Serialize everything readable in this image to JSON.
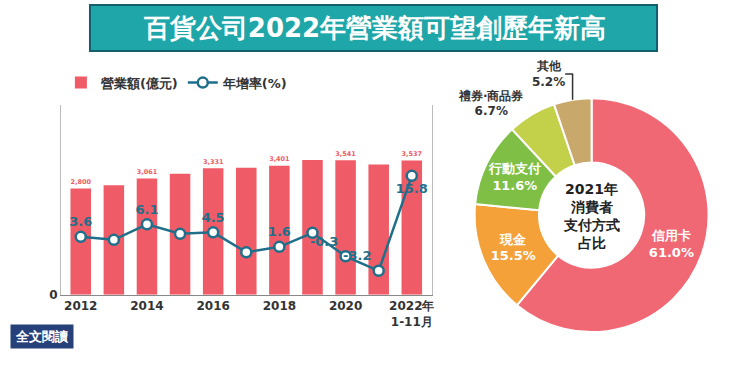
{
  "chart_data": [
    {
      "type": "bar",
      "title": "百貨公司2022年營業額可望創歷年新高",
      "categories": [
        "2012",
        null,
        "2014",
        null,
        "2016",
        null,
        "2018",
        null,
        "2020",
        null,
        "2022年\n1-11月"
      ],
      "series": [
        {
          "name": "營業額(億元)",
          "type": "bar",
          "color": "#ef5b66",
          "values": [
            2800,
            2885,
            3061,
            3190,
            3331,
            3347,
            3401,
            3551,
            3541,
            3428,
            3537
          ],
          "value_labels": [
            "2,800",
            null,
            "3,061",
            null,
            "3,331",
            null,
            "3,401",
            null,
            "3,541",
            null,
            "3,537"
          ]
        },
        {
          "name": "年增率(%)",
          "type": "line",
          "axis": "y2",
          "color": "#1f6f8b",
          "marker": "circle",
          "values": [
            3.6,
            3.0,
            6.1,
            4.2,
            4.5,
            0.5,
            1.6,
            4.4,
            -0.3,
            -3.2,
            15.8
          ],
          "value_labels": [
            "3.6",
            null,
            "6.1",
            null,
            "4.5",
            null,
            "1.6",
            null,
            "-0.3",
            "-3.2",
            "15.8"
          ]
        }
      ],
      "ylim": [
        0,
        5000
      ],
      "yticks": [
        0
      ],
      "y2lim": [
        -8,
        30
      ],
      "y2ticks": [],
      "grid": false,
      "legend": "top-left",
      "data_labels": true,
      "annotations": [
        "全文閱讀"
      ]
    },
    {
      "type": "pie",
      "title": "2021年\n消費者\n支付方式\n占比",
      "categories": [
        "信用卡",
        "現金",
        "行動支付",
        "禮券‧商品券",
        "其他"
      ],
      "values": [
        61.0,
        15.5,
        11.6,
        6.7,
        5.2
      ],
      "value_labels": [
        "61.0%",
        "15.5%",
        "11.6%",
        "6.7%",
        "5.2%"
      ],
      "colors": [
        "#f06874",
        "#f5a13a",
        "#7fbf45",
        "#c3d04a",
        "#c9a86c"
      ],
      "data_labels": true
    }
  ]
}
